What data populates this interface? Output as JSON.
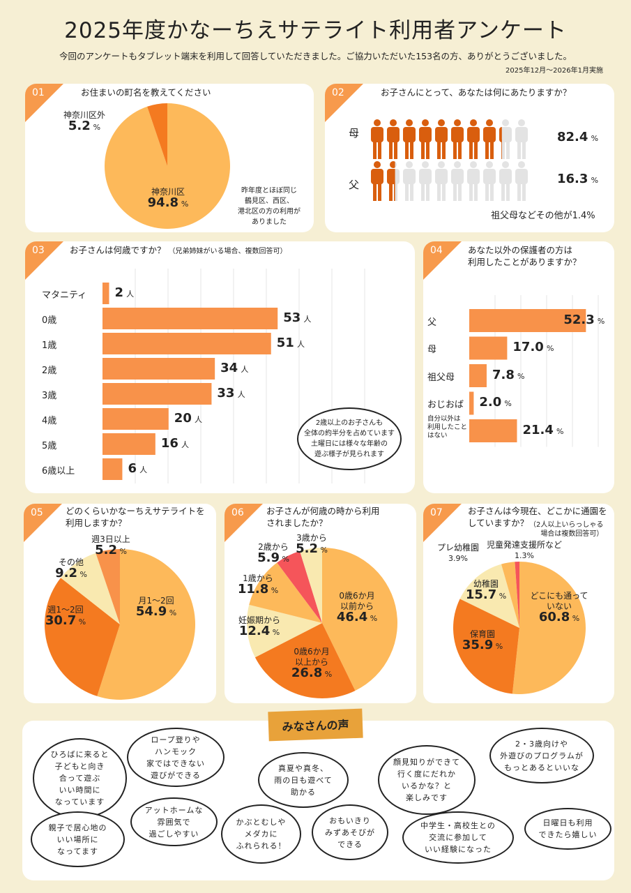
{
  "header": {
    "title": "2025年度かなーちえサテライト利用者アンケート",
    "subtitle": "今回のアンケートもタブレット端末を利用して回答していただきました。ご協力いただいた153名の方、ありがとうございました。",
    "date": "2025年12月～2026年1月実施"
  },
  "colors": {
    "accent": "#f79a4c",
    "light": "#fdb95a",
    "dark": "#f47a20",
    "pale": "#f9e9b0",
    "red": "#f5555a",
    "mid": "#f8924a",
    "grey": "#e3e3e3"
  },
  "percent": "%",
  "person": "人",
  "q1": {
    "num": "01",
    "question": "お住まいの町名を教えてください",
    "labels": [
      {
        "name": "神奈川区",
        "value": "94.8"
      },
      {
        "name": "神奈川区外",
        "value": "5.2"
      }
    ],
    "note": "昨年度とほぼ同じ\n鶴見区、西区、\n港北区の方の利用が\nありました"
  },
  "q2": {
    "num": "02",
    "question": "お子さんにとって、あなたは何にあたりますか？",
    "rows": [
      {
        "name": "母",
        "value": "82.4"
      },
      {
        "name": "父",
        "value": "16.3"
      }
    ],
    "note": "祖父母などその他が1.4%"
  },
  "q3": {
    "num": "03",
    "question": "お子さんは何歳ですか？",
    "sub": "（兄弟姉妹がいる場合、複数回答可）",
    "callout": "2歳以上のお子さんも\n全体の約半分を占めています\n土曜日には様々な年齢の\n遊ぶ様子が見られます"
  },
  "q4": {
    "num": "04",
    "question": "あなた以外の保護者の方は\n利用したことがありますか？"
  },
  "q5": {
    "num": "05",
    "question": "どのくらいかなーちえサテライトを\n利用しますか？"
  },
  "q6": {
    "num": "06",
    "question": "お子さんが何歳の時から利用\nされましたか？"
  },
  "q7": {
    "num": "07",
    "question": "お子さんは今現在、どこかに通園を\nしていますか？",
    "sub": "（2人以上いらっしゃる\n場合は複数回答可）"
  },
  "chart_data": [
    {
      "type": "pie",
      "id": "q1",
      "slices": [
        {
          "name": "神奈川区",
          "value": 94.8
        },
        {
          "name": "神奈川区外",
          "value": 5.2
        }
      ]
    },
    {
      "type": "bar",
      "id": "q3",
      "unit": "人",
      "categories": [
        "マタニティ",
        "0歳",
        "1歳",
        "2歳",
        "3歳",
        "4歳",
        "5歳",
        "6歳以上"
      ],
      "values": [
        2,
        53,
        51,
        34,
        33,
        20,
        16,
        6
      ]
    },
    {
      "type": "bar",
      "id": "q4",
      "unit": "%",
      "categories": [
        "父",
        "母",
        "祖父母",
        "おじおば",
        "自分以外は\n利用したこと\nはない"
      ],
      "values": [
        52.3,
        17.0,
        7.8,
        2.0,
        21.4
      ]
    },
    {
      "type": "pie",
      "id": "q5",
      "slices": [
        {
          "name": "月1～2回",
          "value": 54.9
        },
        {
          "name": "週1～2回",
          "value": 30.7
        },
        {
          "name": "その他",
          "value": 9.2
        },
        {
          "name": "週3日以上",
          "value": 5.2
        }
      ]
    },
    {
      "type": "pie",
      "id": "q6",
      "slices": [
        {
          "name": "0歳6か月\n以前から",
          "value": 46.4
        },
        {
          "name": "0歳6か月\n以上から",
          "value": 26.8
        },
        {
          "name": "妊娠期から",
          "value": 12.4
        },
        {
          "name": "1歳から",
          "value": 11.8
        },
        {
          "name": "2歳から",
          "value": 5.9
        },
        {
          "name": "3歳から",
          "value": 5.2
        }
      ]
    },
    {
      "type": "pie",
      "id": "q7",
      "slices": [
        {
          "name": "どこにも通って\nいない",
          "value": 60.8
        },
        {
          "name": "保育園",
          "value": 35.9
        },
        {
          "name": "幼稚園",
          "value": 15.7
        },
        {
          "name": "プレ幼稚園",
          "value": 3.9
        },
        {
          "name": "児童発達支援所など",
          "value": 1.3
        }
      ]
    }
  ],
  "voices": {
    "title": "みなさんの声",
    "items": [
      "ひろばに来ると\n子どもと向き\n合って遊ぶ\nいい時間に\nなっています",
      "ロープ登りや\nハンモック\n家ではできない\n遊びができる",
      "真夏や真冬、\n雨の日も遊べて\n助かる",
      "顔見知りができて\n行く度にだれか\nいるかな？と\n楽しみです",
      "2・3歳向けや\n外遊びのプログラムが\nもっとあるといいな",
      "親子で居心地の\nいい場所に\nなってます",
      "アットホームな\n雰囲気で\n過ごしやすい",
      "かぶとむしや\nメダカに\nふれられる！",
      "おもいきり\nみずあそびが\nできる",
      "中学生・高校生との\n交流に参加して\nいい経験になった",
      "日曜日も利用\nできたら嬉しい"
    ]
  }
}
